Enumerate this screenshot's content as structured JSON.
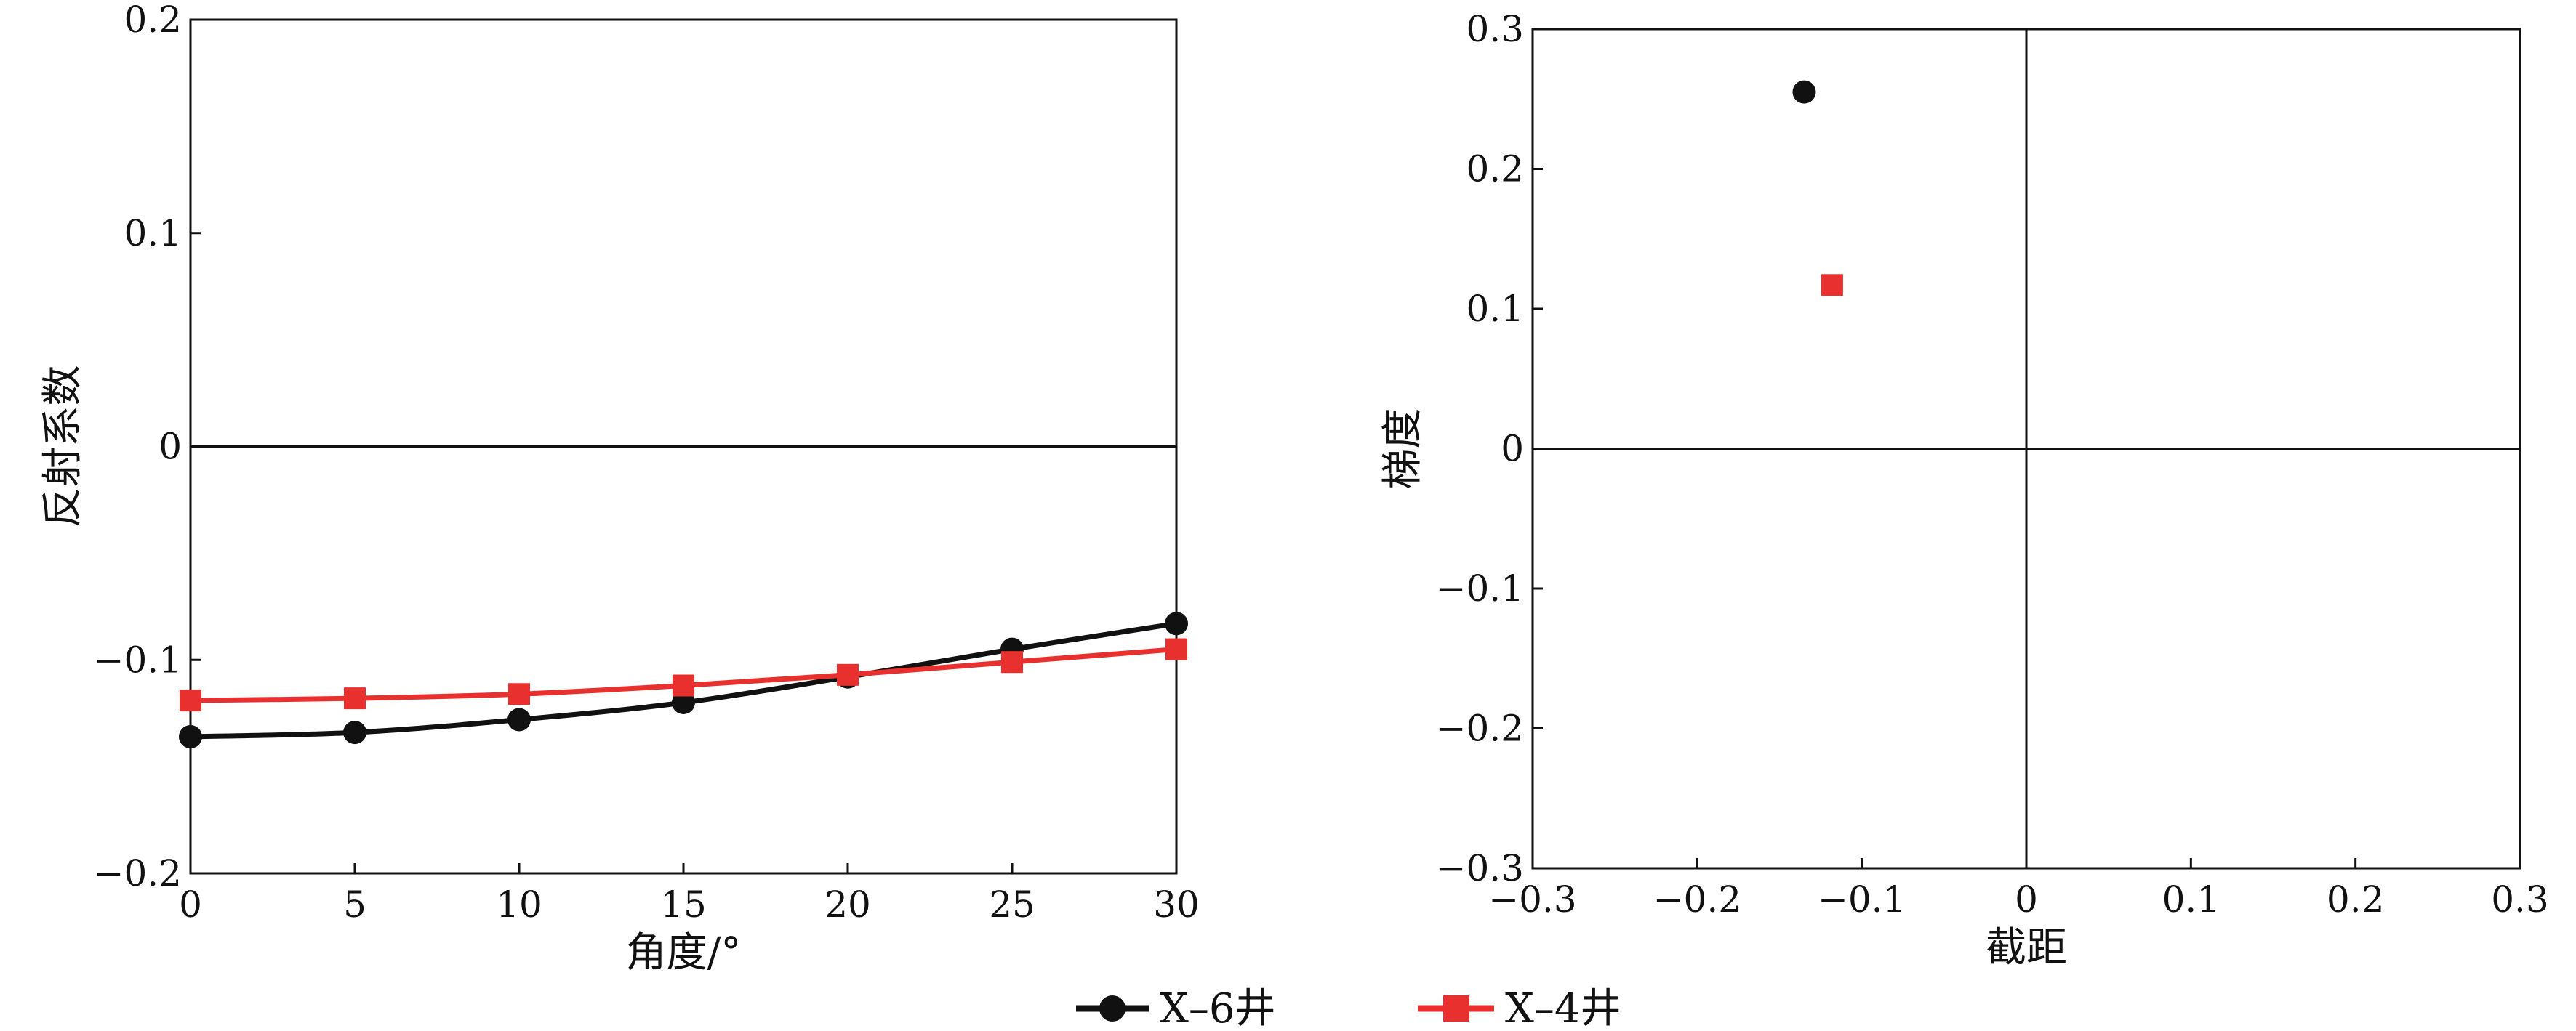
{
  "chart_data": [
    {
      "type": "line",
      "xlabel": "角度/°",
      "ylabel": "反射系数",
      "xlim": [
        0,
        30
      ],
      "ylim": [
        -0.2,
        0.2
      ],
      "xticks": [
        "0",
        "5",
        "10",
        "15",
        "20",
        "25",
        "30"
      ],
      "yticks": [
        "−0.2",
        "−0.1",
        "0",
        "0.1",
        "0.2"
      ],
      "x": [
        0,
        5,
        10,
        15,
        20,
        25,
        30
      ],
      "series": [
        {
          "name": "X–6井",
          "color": "#111111",
          "marker": "circle",
          "values": [
            -0.136,
            -0.134,
            -0.128,
            -0.12,
            -0.108,
            -0.095,
            -0.083
          ]
        },
        {
          "name": "X–4井",
          "color": "#e8312f",
          "marker": "square",
          "values": [
            -0.119,
            -0.118,
            -0.116,
            -0.112,
            -0.107,
            -0.101,
            -0.095
          ]
        }
      ],
      "grid": false
    },
    {
      "type": "scatter",
      "xlabel": "截距",
      "ylabel": "梯度",
      "xlim": [
        -0.3,
        0.3
      ],
      "ylim": [
        -0.3,
        0.3
      ],
      "xticks": [
        "−0.3",
        "−0.2",
        "−0.1",
        "0",
        "0.1",
        "0.2",
        "0.3"
      ],
      "yticks": [
        "−0.3",
        "−0.2",
        "−0.1",
        "0",
        "0.1",
        "0.2",
        "0.3"
      ],
      "series": [
        {
          "name": "X–6井",
          "color": "#111111",
          "marker": "circle",
          "x": [
            -0.135
          ],
          "y": [
            0.255
          ]
        },
        {
          "name": "X–4井",
          "color": "#e8312f",
          "marker": "square",
          "x": [
            -0.118
          ],
          "y": [
            0.117
          ]
        }
      ],
      "grid": false
    }
  ],
  "legend": {
    "position": "bottom-center",
    "items": [
      {
        "label": "X–6井",
        "color": "#111111",
        "marker": "circle"
      },
      {
        "label": "X–4井",
        "color": "#e8312f",
        "marker": "square"
      }
    ]
  }
}
